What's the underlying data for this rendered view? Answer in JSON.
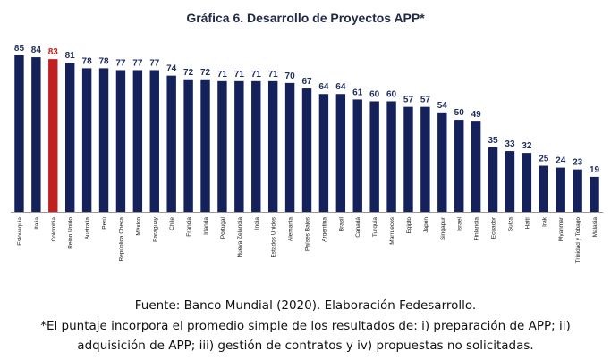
{
  "chart_data": {
    "type": "bar",
    "title": "Gráfica 6. Desarrollo de Proyectos APP*",
    "xlabel": "",
    "ylabel": "",
    "ylim": [
      0,
      85
    ],
    "grid": false,
    "legend": "none",
    "categories": [
      "Eslovaquia",
      "Italia",
      "Colombia",
      "Reino Unido",
      "Australia",
      "Perú",
      "República Checa",
      "México",
      "Paraguay",
      "Chile",
      "Francia",
      "Irlanda",
      "Portugal",
      "Nueva Zelandia",
      "India",
      "Estados Unidos",
      "Alemania",
      "Países Bajos",
      "Argentina",
      "Brasil",
      "Canadá",
      "Turquía",
      "Marruecos",
      "Egipto",
      "Japón",
      "Singapur",
      "Israel",
      "Finlandia",
      "Ecuador",
      "Suiza",
      "Haití",
      "Irak",
      "Myanmar",
      "Trinidad y Tobago",
      "Malasia"
    ],
    "values": [
      85,
      84,
      83,
      81,
      78,
      78,
      77,
      77,
      77,
      74,
      72,
      72,
      71,
      71,
      71,
      71,
      70,
      67,
      64,
      64,
      61,
      60,
      60,
      57,
      57,
      54,
      50,
      49,
      35,
      33,
      32,
      25,
      24,
      23,
      19
    ],
    "highlight_index": 2,
    "colors": {
      "bar": "#14215a",
      "highlight": "#c0201f",
      "label": "#1f2d5a",
      "highlight_label": "#c0201f",
      "axis": "#999999"
    }
  },
  "notes": {
    "source": "Fuente: Banco Mundial (2020). Elaboración Fedesarrollo.",
    "line1": "*El puntaje incorpora el promedio simple de los resultados de: i) preparación de APP; ii)",
    "line2": "adquisición de APP; iii) gestión de contratos y iv) propuestas no solicitadas."
  }
}
